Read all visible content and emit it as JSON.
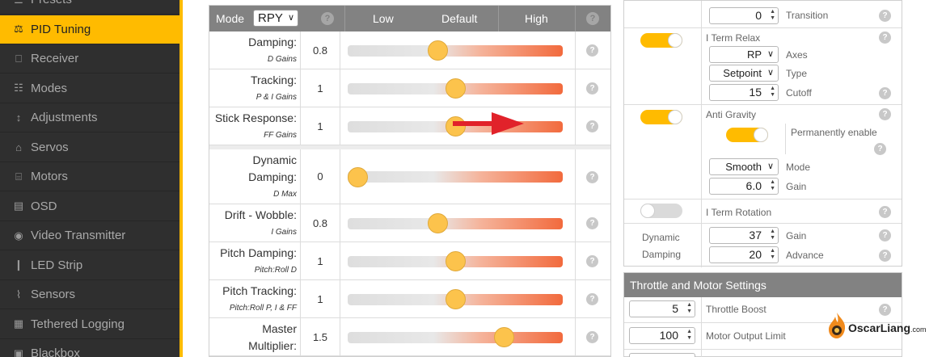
{
  "sidebar": {
    "items": [
      {
        "label": "Presets",
        "icon": "presets-icon"
      },
      {
        "label": "PID Tuning",
        "icon": "pid-tuning-icon",
        "active": true
      },
      {
        "label": "Receiver",
        "icon": "receiver-icon"
      },
      {
        "label": "Modes",
        "icon": "modes-icon"
      },
      {
        "label": "Adjustments",
        "icon": "adjustments-icon"
      },
      {
        "label": "Servos",
        "icon": "servos-icon"
      },
      {
        "label": "Motors",
        "icon": "motors-icon"
      },
      {
        "label": "OSD",
        "icon": "osd-icon"
      },
      {
        "label": "Video Transmitter",
        "icon": "video-transmitter-icon"
      },
      {
        "label": "LED Strip",
        "icon": "led-strip-icon"
      },
      {
        "label": "Sensors",
        "icon": "sensors-icon"
      },
      {
        "label": "Tethered Logging",
        "icon": "tethered-logging-icon"
      },
      {
        "label": "Blackbox",
        "icon": "blackbox-icon"
      }
    ],
    "accent": "#ffbb00"
  },
  "pid": {
    "header": {
      "mode_label": "Mode",
      "mode_value": "RPY",
      "col_low": "Low",
      "col_default": "Default",
      "col_high": "High",
      "help": "?"
    },
    "rows": [
      {
        "label": "Damping:",
        "sub": "D Gains",
        "value": "0.8",
        "level": 0.41
      },
      {
        "label": "Tracking:",
        "sub": "P & I Gains",
        "value": "1",
        "level": 0.5
      },
      {
        "label": "Stick Response:",
        "sub": "FF Gains",
        "value": "1",
        "level": 0.5
      },
      {
        "label": "Dynamic",
        "label2": "Damping:",
        "sub": "D Max",
        "value": "0",
        "level": 0.0
      },
      {
        "label": "Drift - Wobble:",
        "sub": "I Gains",
        "value": "0.8",
        "level": 0.41
      },
      {
        "label": "Pitch Damping:",
        "sub": "Pitch:Roll D",
        "value": "1",
        "level": 0.5
      },
      {
        "label": "Pitch Tracking:",
        "sub": "Pitch:Roll P, I & FF",
        "value": "1",
        "level": 0.5
      },
      {
        "label": "Master",
        "label2": "Multiplier:",
        "value": "1.5",
        "level": 0.75
      }
    ]
  },
  "right": {
    "transition_value": "0",
    "transition_label": "Transition",
    "iterm_relax_label": "I Term Relax",
    "iterm_relax_on": true,
    "axes_value": "RP",
    "axes_label": "Axes",
    "type_value": "Setpoint",
    "type_label": "Type",
    "cutoff_value": "15",
    "cutoff_label": "Cutoff",
    "anti_gravity_label": "Anti Gravity",
    "anti_gravity_on": true,
    "permanently_label": "Permanently enable",
    "permanently_on": true,
    "ag_mode_value": "Smooth",
    "ag_mode_label": "Mode",
    "ag_gain_value": "6.0",
    "ag_gain_label": "Gain",
    "iterm_rotation_label": "I Term Rotation",
    "iterm_rotation_on": false,
    "dyn_damp_label1": "Dynamic",
    "dyn_damp_label2": "Damping",
    "dyn_gain_value": "37",
    "dyn_gain_label": "Gain",
    "dyn_advance_value": "20",
    "dyn_advance_label": "Advance",
    "help": "?"
  },
  "throttle": {
    "title": "Throttle and Motor Settings",
    "boost_value": "5",
    "boost_label": "Throttle Boost",
    "motor_limit_value": "100",
    "motor_limit_label": "Motor Output Limit",
    "help": "?"
  },
  "watermark": {
    "name": "OscarLiang",
    "suffix": ".com"
  }
}
